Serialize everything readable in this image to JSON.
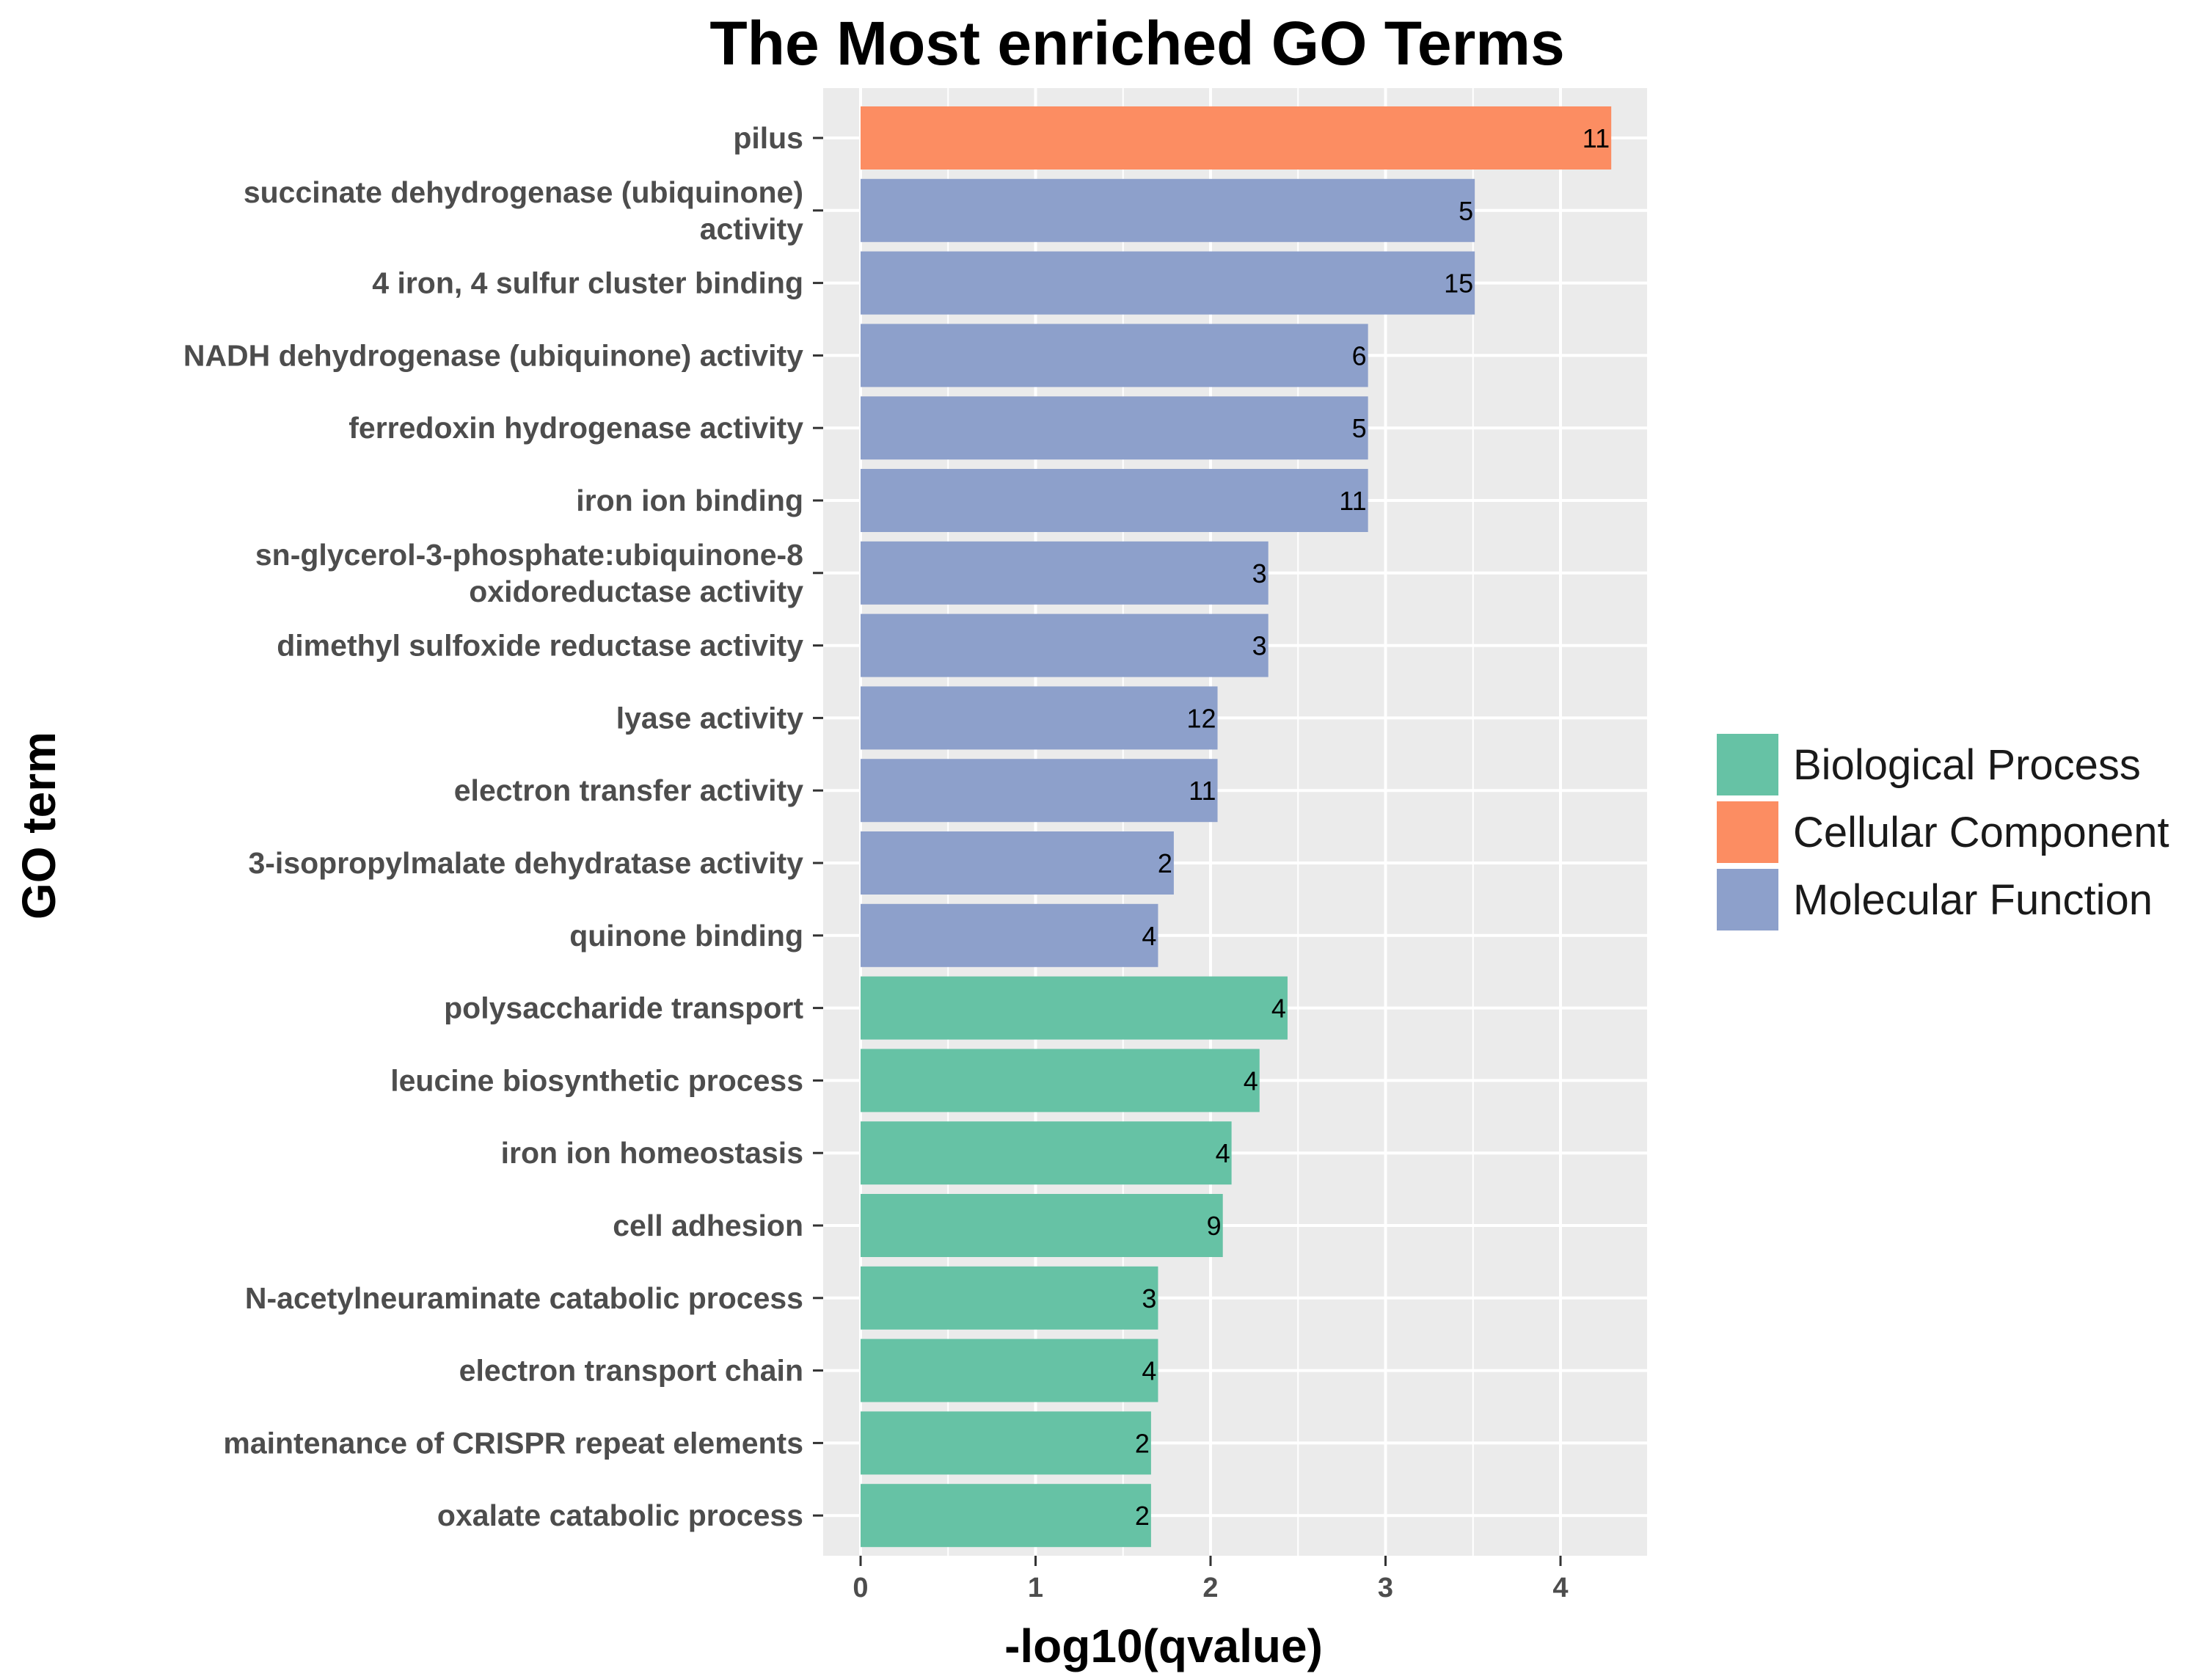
{
  "chart_data": {
    "type": "bar",
    "orientation": "horizontal",
    "title": "The Most enriched GO Terms",
    "xlabel": "-log10(qvalue)",
    "ylabel": "GO term",
    "xlim": [
      0,
      4.5
    ],
    "xticks": [
      "0",
      "1",
      "2",
      "3",
      "4"
    ],
    "grid": true,
    "legend_position": "right",
    "categories": [
      "pilus",
      "succinate dehydrogenase (ubiquinone) activity",
      "4 iron, 4 sulfur cluster binding",
      "NADH dehydrogenase (ubiquinone) activity",
      "ferredoxin hydrogenase activity",
      "iron ion binding",
      "sn-glycerol-3-phosphate:ubiquinone-8 oxidoreductase activity",
      "dimethyl sulfoxide reductase activity",
      "lyase activity",
      "electron transfer activity",
      "3-isopropylmalate dehydratase activity",
      "quinone binding",
      "polysaccharide transport",
      "leucine biosynthetic process",
      "iron ion homeostasis",
      "cell adhesion",
      "N-acetylneuraminate catabolic process",
      "electron transport chain",
      "maintenance of CRISPR repeat elements",
      "oxalate catabolic process"
    ],
    "category_lines": [
      [
        "pilus"
      ],
      [
        "succinate dehydrogenase (ubiquinone)",
        "activity"
      ],
      [
        "4 iron, 4 sulfur cluster binding"
      ],
      [
        "NADH dehydrogenase (ubiquinone) activity"
      ],
      [
        "ferredoxin hydrogenase activity"
      ],
      [
        "iron ion binding"
      ],
      [
        "sn-glycerol-3-phosphate:ubiquinone-8",
        "oxidoreductase activity"
      ],
      [
        "dimethyl sulfoxide reductase activity"
      ],
      [
        "lyase activity"
      ],
      [
        "electron transfer activity"
      ],
      [
        "3-isopropylmalate dehydratase activity"
      ],
      [
        "quinone binding"
      ],
      [
        "polysaccharide transport"
      ],
      [
        "leucine biosynthetic process"
      ],
      [
        "iron ion homeostasis"
      ],
      [
        "cell adhesion"
      ],
      [
        "N-acetylneuraminate catabolic process"
      ],
      [
        "electron transport chain"
      ],
      [
        "maintenance of CRISPR repeat elements"
      ],
      [
        "oxalate catabolic process"
      ]
    ],
    "values": [
      4.29,
      3.51,
      3.51,
      2.9,
      2.9,
      2.9,
      2.33,
      2.33,
      2.04,
      2.04,
      1.79,
      1.7,
      2.44,
      2.28,
      2.12,
      2.07,
      1.7,
      1.7,
      1.66,
      1.66
    ],
    "labels": [
      "11",
      "5",
      "15",
      "6",
      "5",
      "11",
      "3",
      "3",
      "12",
      "11",
      "2",
      "4",
      "4",
      "4",
      "4",
      "9",
      "3",
      "4",
      "2",
      "2"
    ],
    "groups": [
      "Cellular Component",
      "Molecular Function",
      "Molecular Function",
      "Molecular Function",
      "Molecular Function",
      "Molecular Function",
      "Molecular Function",
      "Molecular Function",
      "Molecular Function",
      "Molecular Function",
      "Molecular Function",
      "Molecular Function",
      "Biological Process",
      "Biological Process",
      "Biological Process",
      "Biological Process",
      "Biological Process",
      "Biological Process",
      "Biological Process",
      "Biological Process"
    ],
    "legend": [
      {
        "name": "Biological Process",
        "color": "#66c2a5"
      },
      {
        "name": "Cellular Component",
        "color": "#fc8d62"
      },
      {
        "name": "Molecular Function",
        "color": "#8da0cb"
      }
    ],
    "panel_background": "#ebebeb",
    "grid_color": "#ffffff"
  }
}
